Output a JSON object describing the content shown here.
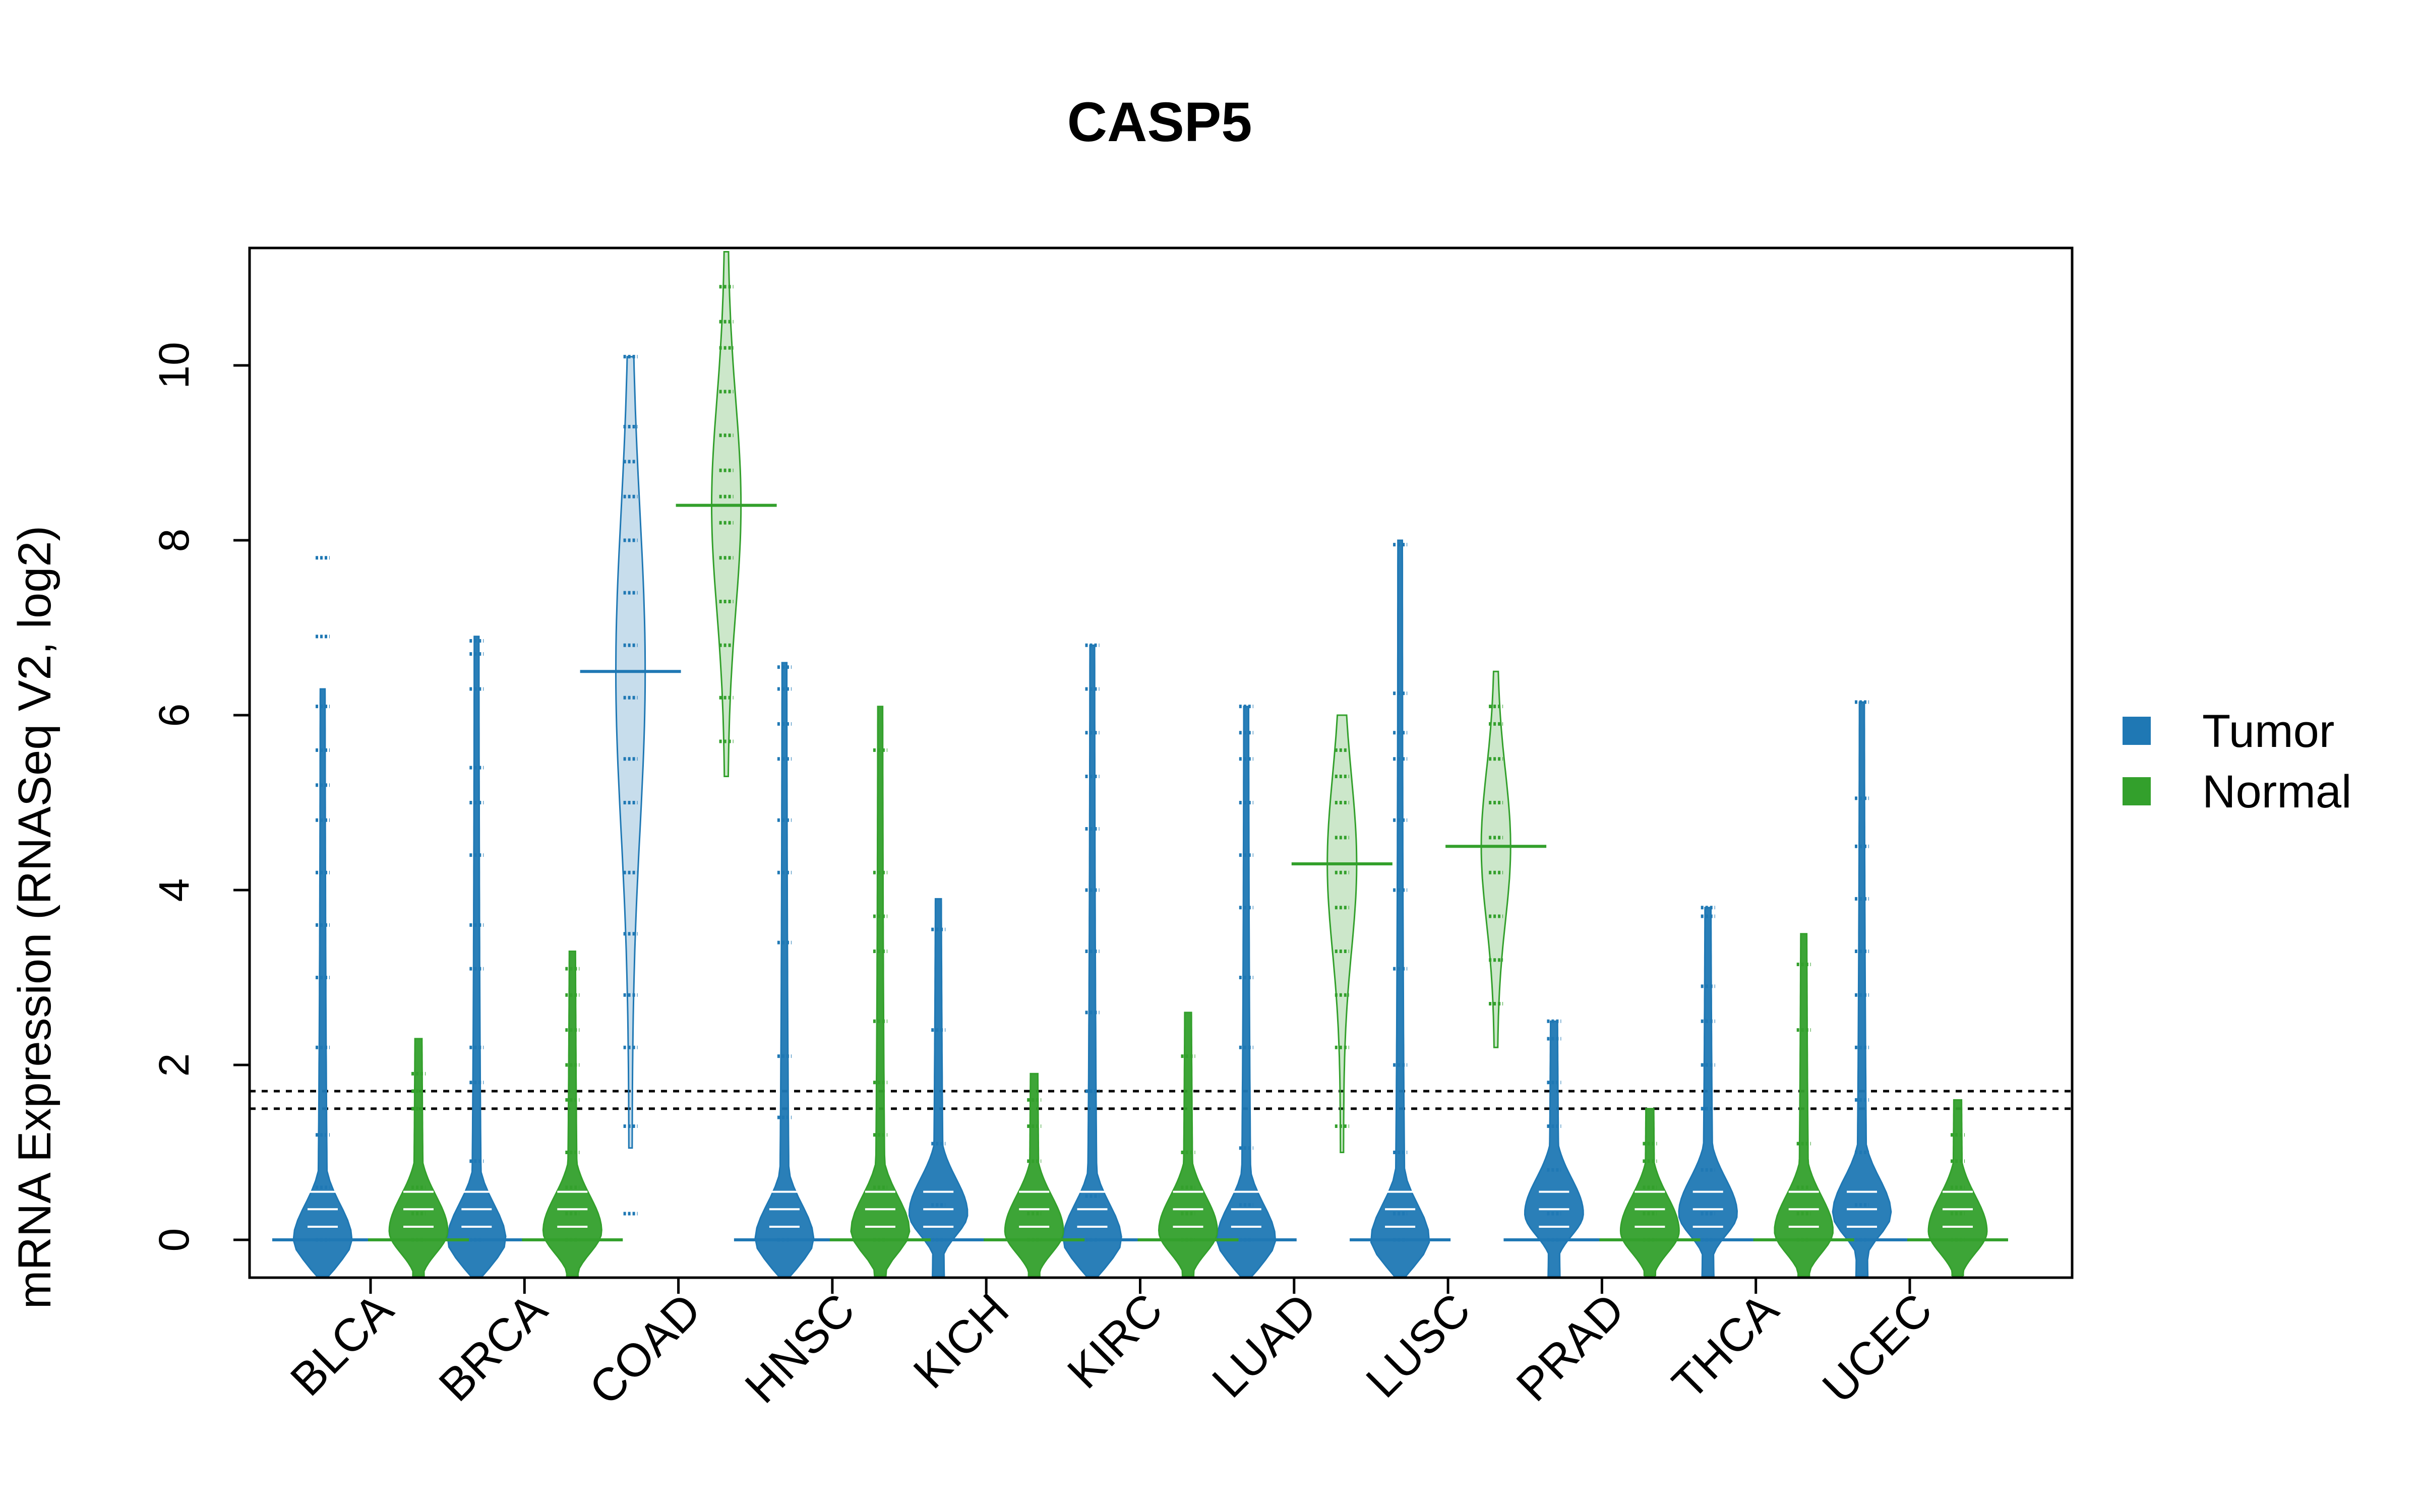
{
  "chart_data": {
    "type": "beanplot",
    "title": "CASP5",
    "ylabel": "mRNA Expression (RNASeq V2, log2)",
    "xlabel": "",
    "ylim": [
      -0.45,
      11.3
    ],
    "yticks": [
      "0",
      "2",
      "4",
      "6",
      "8",
      "10"
    ],
    "ytick_values": [
      0,
      2,
      4,
      6,
      8,
      10
    ],
    "grid": false,
    "legend_position": "right",
    "categories": [
      "BLCA",
      "BRCA",
      "COAD",
      "HNSC",
      "KICH",
      "KIRC",
      "LUAD",
      "LUSC",
      "PRAD",
      "THCA",
      "UCEC"
    ],
    "reference_lines": [
      1.5,
      1.7
    ],
    "series": [
      {
        "name": "Tumor",
        "color": "#1f78b4",
        "ranges": [
          [
            -0.45,
            6.3
          ],
          [
            -0.45,
            6.9
          ],
          [
            1.05,
            10.1
          ],
          [
            -0.45,
            6.6
          ],
          [
            -0.45,
            3.9
          ],
          [
            -0.45,
            6.8
          ],
          [
            -0.45,
            6.1
          ],
          [
            -0.45,
            8.0
          ],
          [
            -0.45,
            2.5
          ],
          [
            -0.45,
            3.8
          ],
          [
            -0.45,
            6.15
          ]
        ],
        "modes": [
          0,
          0,
          6.5,
          0,
          0.3,
          0,
          0,
          0,
          0.3,
          0.3,
          0.3
        ],
        "points": [
          [
            0,
            0.6,
            1.2,
            2.2,
            3.0,
            3.6,
            4.2,
            4.8,
            5.2,
            5.6,
            6.1,
            6.9,
            7.8
          ],
          [
            0,
            0.9,
            1.8,
            2.2,
            3.1,
            3.6,
            4.4,
            5.0,
            5.4,
            6.3,
            6.7,
            6.85
          ],
          [
            0.3,
            1.3,
            2.2,
            2.8,
            3.5,
            4.2,
            5.0,
            5.5,
            6.2,
            6.8,
            7.4,
            8.0,
            8.5,
            8.9,
            9.3,
            10.1
          ],
          [
            0,
            1.4,
            2.1,
            3.4,
            4.2,
            4.8,
            5.5,
            5.9,
            6.3,
            6.55
          ],
          [
            0,
            0.4,
            1.1,
            2.4,
            3.55
          ],
          [
            0,
            0.5,
            1.7,
            2.6,
            3.3,
            4.0,
            4.7,
            5.3,
            5.8,
            6.3,
            6.8
          ],
          [
            0,
            0.4,
            1.05,
            2.2,
            3.0,
            3.8,
            4.4,
            5.0,
            5.5,
            5.8,
            6.1
          ],
          [
            0,
            0.3,
            1.0,
            2.0,
            3.1,
            4.0,
            4.8,
            5.5,
            5.8,
            6.25,
            7.95
          ],
          [
            0,
            0.3,
            0.8,
            1.3,
            1.8,
            2.3,
            2.5
          ],
          [
            0,
            0.3,
            0.8,
            1.5,
            2.0,
            2.5,
            2.9,
            3.7,
            3.8
          ],
          [
            0,
            0.4,
            1.0,
            1.6,
            2.2,
            2.8,
            3.3,
            3.9,
            4.5,
            5.05,
            6.15
          ]
        ]
      },
      {
        "name": "Normal",
        "color": "#33a02c",
        "ranges": [
          [
            -0.45,
            2.3
          ],
          [
            -0.45,
            3.3
          ],
          [
            5.3,
            11.3
          ],
          [
            -0.45,
            6.1
          ],
          [
            -0.45,
            1.9
          ],
          [
            -0.45,
            2.6
          ],
          [
            1.0,
            6.0
          ],
          [
            2.2,
            6.5
          ],
          [
            -0.45,
            1.5
          ],
          [
            -0.45,
            3.5
          ],
          [
            -0.45,
            1.6
          ]
        ],
        "modes": [
          0.1,
          0.1,
          8.4,
          0.1,
          0.1,
          0.1,
          4.3,
          4.5,
          0.1,
          0.1,
          0.1
        ],
        "points": [
          [
            0,
            0.3,
            0.6,
            1.5,
            1.7,
            1.9
          ],
          [
            0,
            0.3,
            0.6,
            1.0,
            1.6,
            2.0,
            2.4,
            2.8,
            3.1
          ],
          [
            5.7,
            6.2,
            6.8,
            7.3,
            7.8,
            8.2,
            8.5,
            8.8,
            9.2,
            9.7,
            10.2,
            10.5,
            10.9
          ],
          [
            0,
            0.6,
            1.2,
            1.8,
            2.5,
            3.3,
            3.7,
            4.2,
            5.6
          ],
          [
            0,
            0.3,
            0.9,
            1.3,
            1.6
          ],
          [
            0,
            0.3,
            0.6,
            1.0,
            2.1
          ],
          [
            1.3,
            2.2,
            2.8,
            3.3,
            3.8,
            4.2,
            4.6,
            5.0,
            5.3,
            5.6
          ],
          [
            2.7,
            3.2,
            3.7,
            4.2,
            4.6,
            5.0,
            5.5,
            5.9,
            6.1
          ],
          [
            0,
            0.3,
            0.6,
            0.9,
            1.1
          ],
          [
            0,
            0.3,
            0.6,
            1.1,
            2.4,
            3.15
          ],
          [
            0,
            0.3,
            0.6,
            0.9,
            1.2
          ]
        ]
      }
    ]
  }
}
